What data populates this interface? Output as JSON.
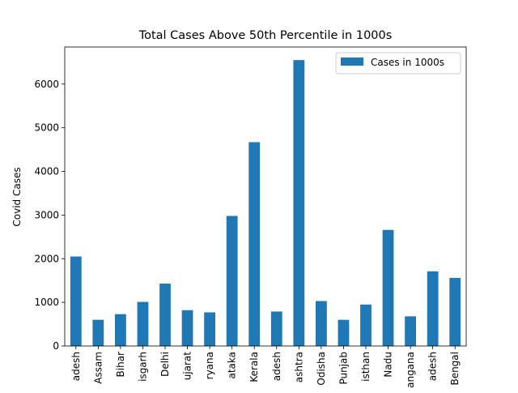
{
  "chart_data": {
    "type": "bar",
    "title": "Total Cases Above 50th Percentile in 1000s",
    "xlabel": "",
    "ylabel": "Covid Cases",
    "categories": [
      "adesh",
      "Assam",
      "Bihar",
      "isgarh",
      "Delhi",
      "ujarat",
      "ryana",
      "ataka",
      "Kerala",
      "adesh",
      "ashtra",
      "Odisha",
      "Punjab",
      "isthan",
      "Nadu",
      "angana",
      "adesh",
      "Bengal"
    ],
    "series": [
      {
        "name": "Cases in 1000s",
        "color": "#1f77b4",
        "values": [
          2050,
          600,
          730,
          1010,
          1430,
          820,
          770,
          2980,
          4670,
          790,
          6550,
          1030,
          600,
          950,
          2660,
          680,
          1710,
          1560
        ]
      }
    ],
    "ylim": [
      0,
      6850
    ],
    "yticks": [
      0,
      1000,
      2000,
      3000,
      4000,
      5000,
      6000
    ],
    "legend_position": "top-right",
    "grid": false
  }
}
